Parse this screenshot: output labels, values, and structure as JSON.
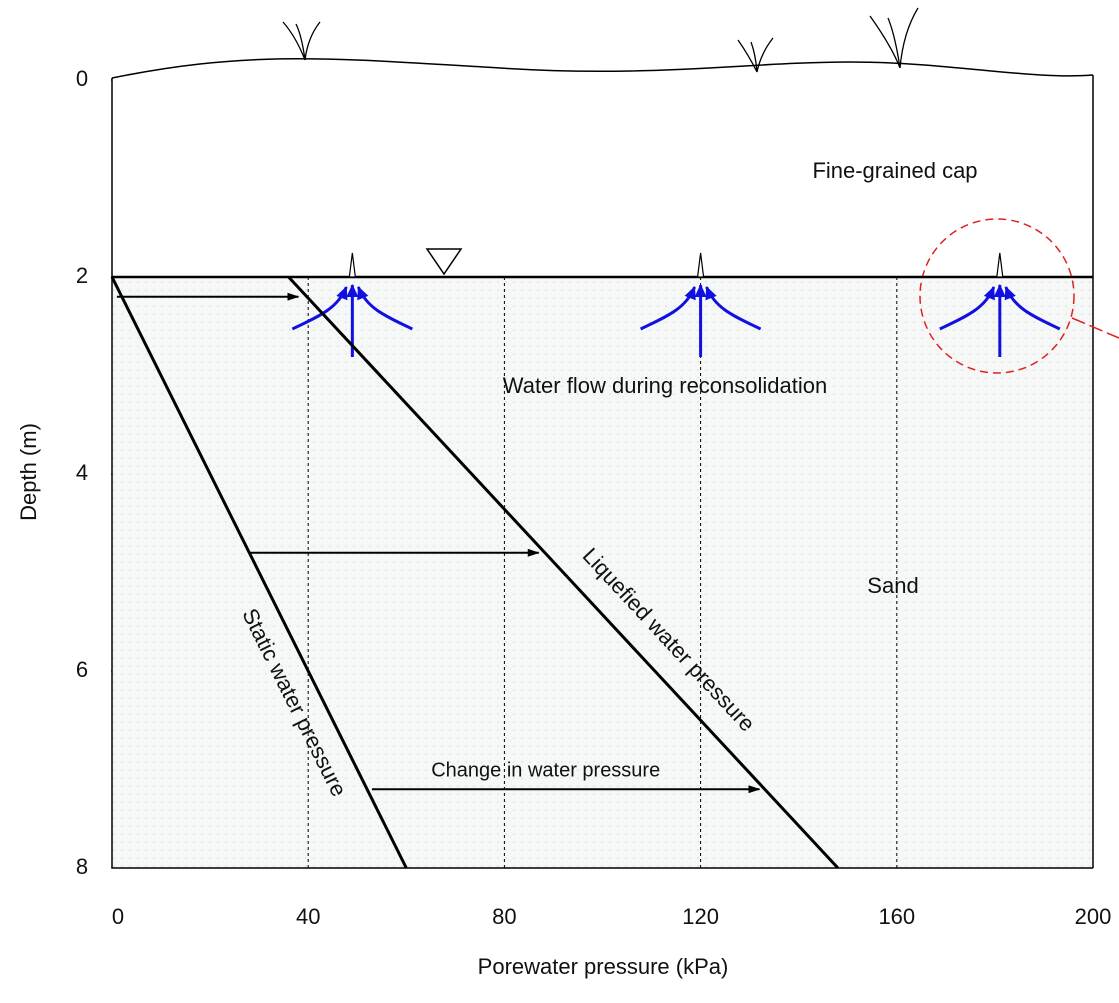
{
  "chart_data": {
    "type": "line",
    "xlabel": "Porewater pressure (kPa)",
    "ylabel": "Depth (m)",
    "xlim": [
      0,
      200
    ],
    "xticks": [
      0,
      40,
      80,
      120,
      160,
      200
    ],
    "ylim": [
      8,
      0
    ],
    "yticks": [
      0,
      2,
      4,
      6,
      8
    ],
    "grid": true,
    "water_table_depth": 2,
    "series": [
      {
        "name": "Static water pressure",
        "color": "#000000",
        "x": [
          0,
          60
        ],
        "values": [
          2,
          8
        ]
      },
      {
        "name": "Liquefied water pressure",
        "color": "#000000",
        "x": [
          36,
          148
        ],
        "values": [
          2,
          8
        ]
      }
    ],
    "arrows": [
      {
        "y": 2.2,
        "x0": 1,
        "x1": 38
      },
      {
        "y": 4.8,
        "x0": 28,
        "x1": 87
      },
      {
        "y": 7.2,
        "x0": 53,
        "x1": 132
      }
    ],
    "arrow_label": "Change in water pressure",
    "flow_points": [
      49,
      120,
      181
    ],
    "annotations": [
      "Fine-grained cap",
      "Water flow during reconsolidation",
      "Sand"
    ]
  }
}
